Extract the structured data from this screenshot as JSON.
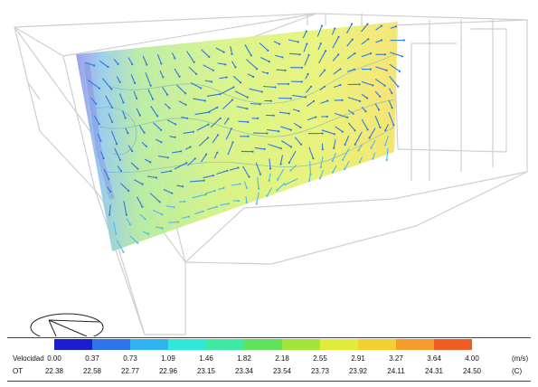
{
  "legend": {
    "velocity_label": "Velocidad",
    "ot_label": "OT",
    "velocity_unit": "(m/s)",
    "ot_unit": "(C)",
    "velocity_ticks": [
      "0.00",
      "0.37",
      "0.73",
      "1.09",
      "1.46",
      "1.82",
      "2.18",
      "2.55",
      "2.91",
      "3.27",
      "3.64",
      "4.00"
    ],
    "ot_ticks": [
      "22.38",
      "22.58",
      "22.77",
      "22.96",
      "23.15",
      "23.34",
      "23.54",
      "23.73",
      "23.92",
      "24.11",
      "24.31",
      "24.50"
    ],
    "colors": [
      "#1c1cd0",
      "#2f73ea",
      "#2fb6f0",
      "#2ee8da",
      "#3deaa0",
      "#5fe35a",
      "#a3e63b",
      "#e1eb3a",
      "#f3cf32",
      "#f59c2b",
      "#ee5b25",
      "#e02020"
    ]
  },
  "scene": {
    "wireframe_color": "#cfcfcf",
    "plane_gradient": [
      "#8f8fe8",
      "#7fc6e8",
      "#a9e79a",
      "#d9f27a",
      "#eef068",
      "#f4e061"
    ],
    "arrow_color": "#2d79e0"
  }
}
